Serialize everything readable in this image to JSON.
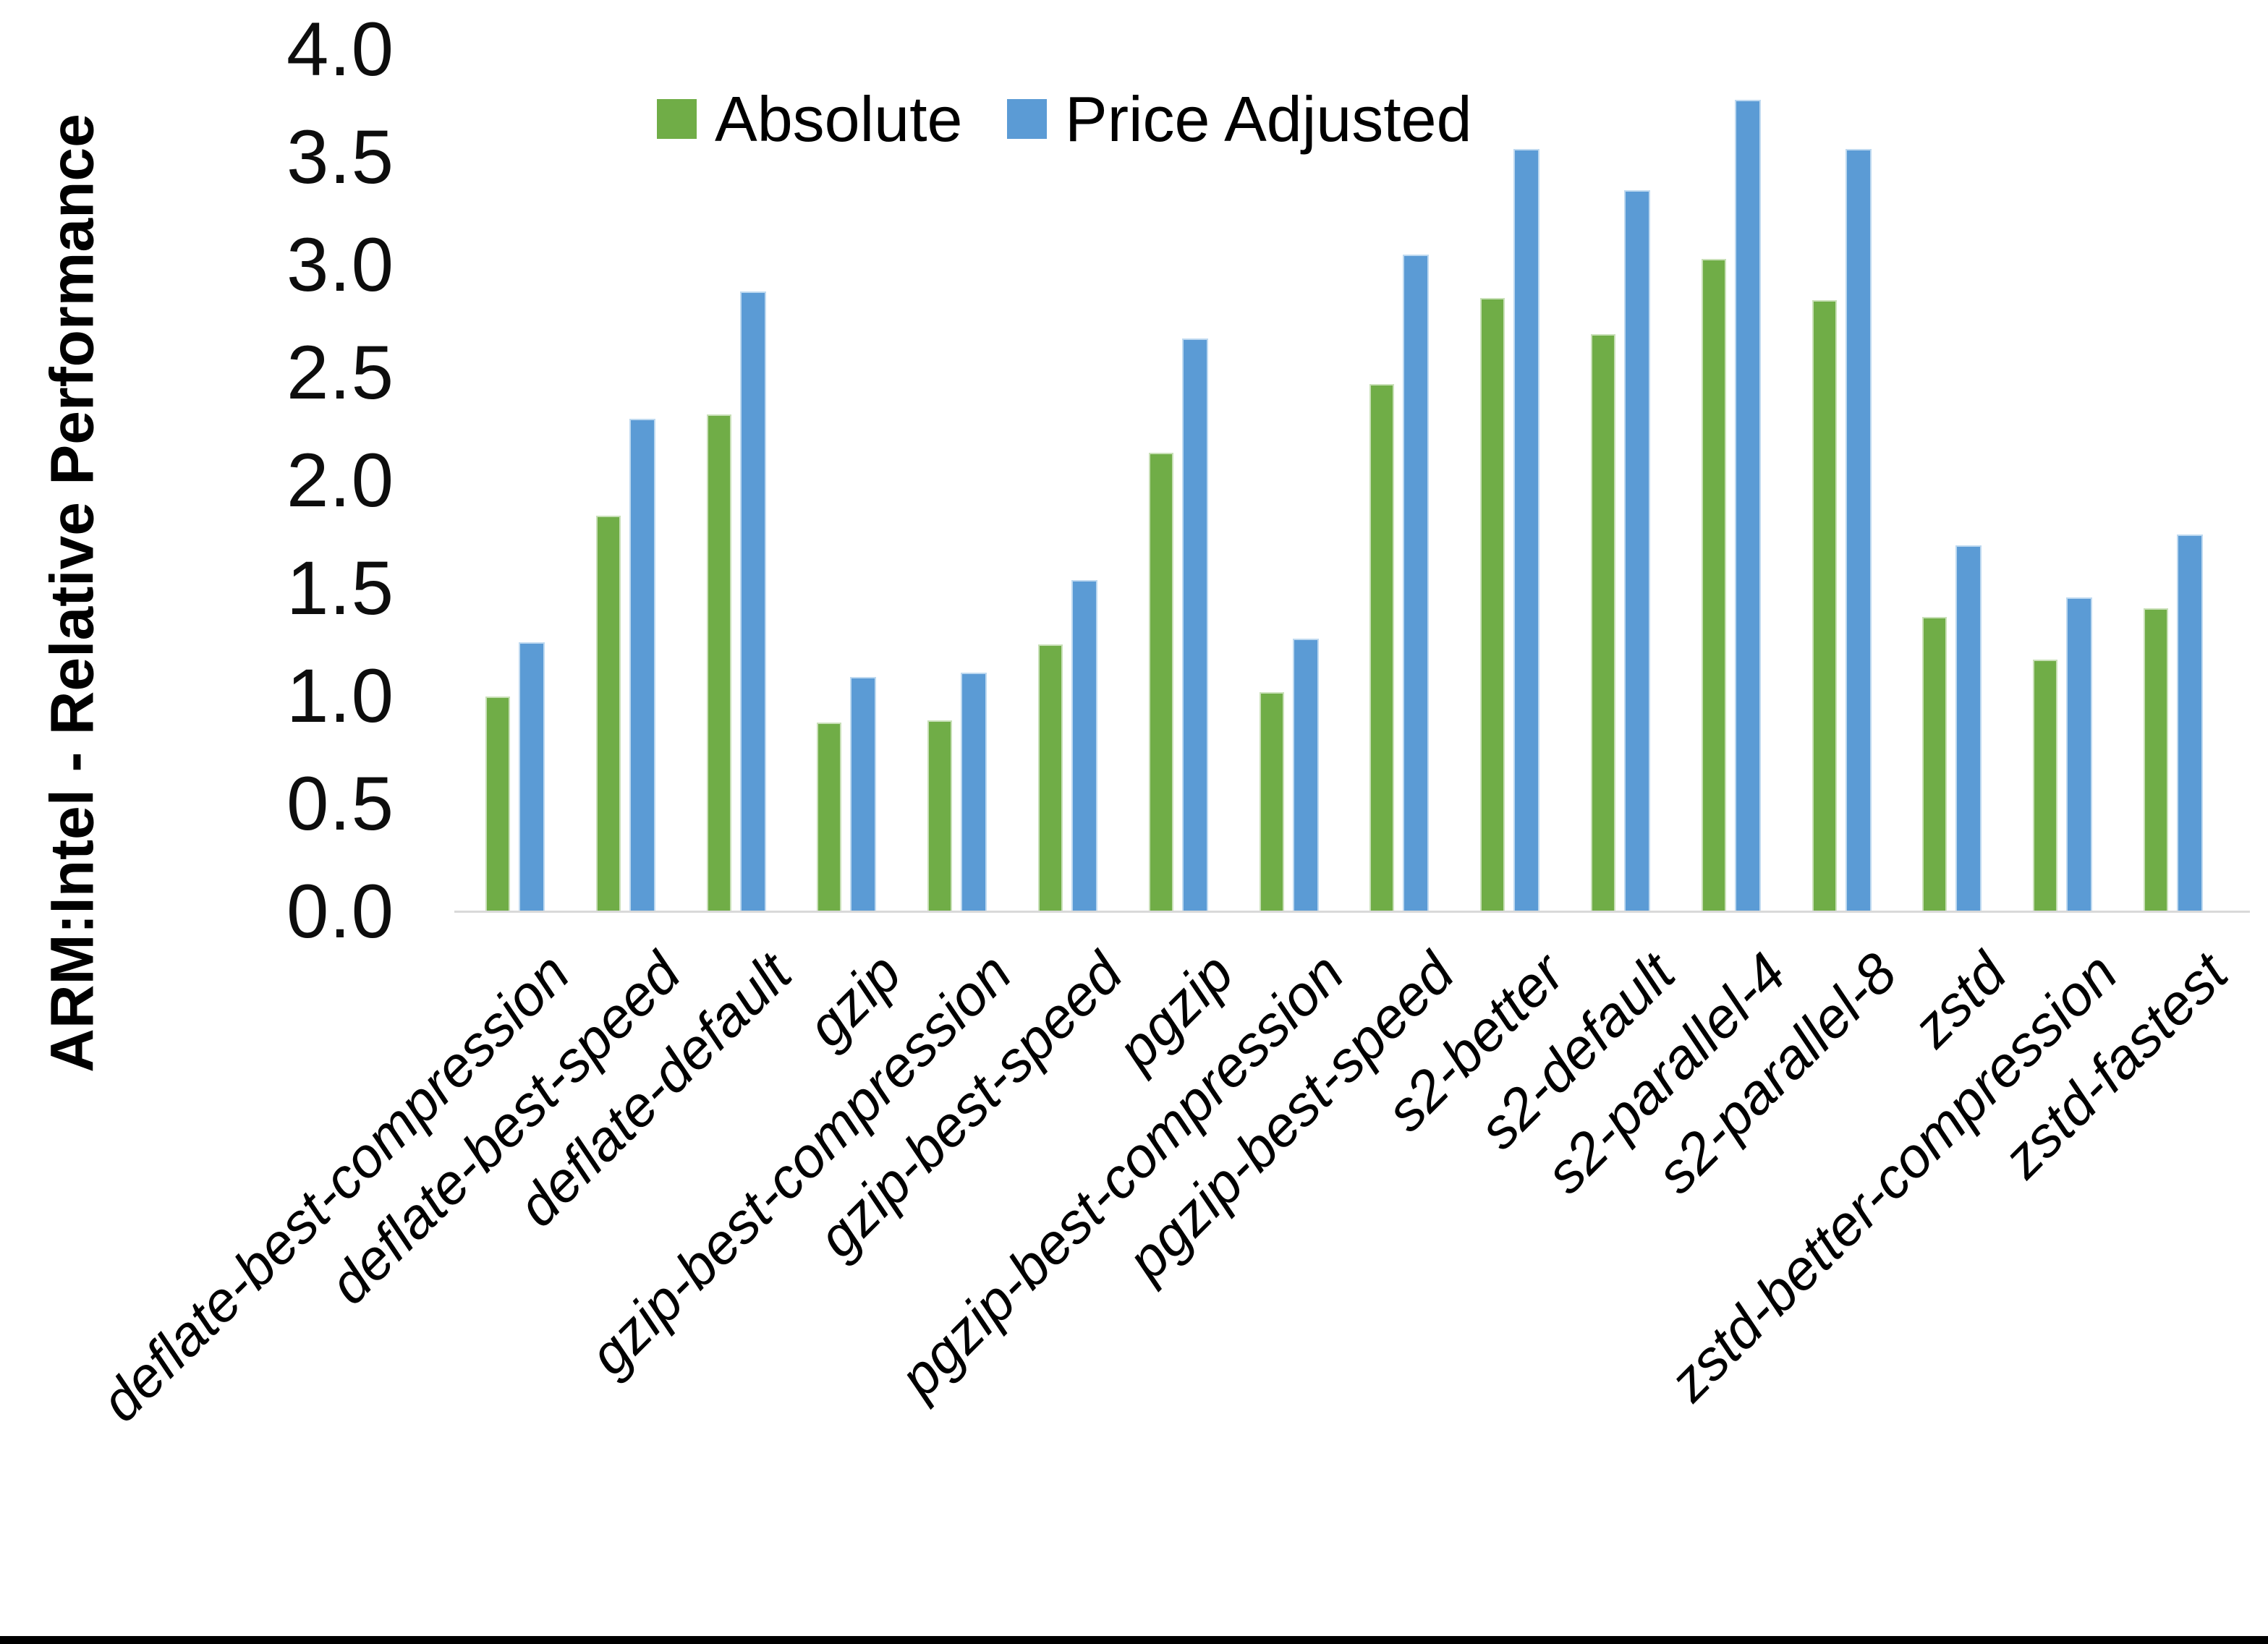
{
  "chart_data": {
    "type": "bar",
    "title": "",
    "ylabel": "ARM:Intel - Relative Performance",
    "xlabel": "",
    "ylim": [
      0.0,
      4.0
    ],
    "ytick_step": 0.5,
    "yticks": [
      "0.0",
      "0.5",
      "1.0",
      "1.5",
      "2.0",
      "2.5",
      "3.0",
      "3.5",
      "4.0"
    ],
    "grid": false,
    "legend_position": "top",
    "categories": [
      "deflate-best-compression",
      "deflate-best-speed",
      "deflate-default",
      "gzip",
      "gzip-best-compression",
      "gzip-best-speed",
      "pgzip",
      "pgzip-best-compression",
      "pgzip-best-speed",
      "s2-better",
      "s2-default",
      "s2-parallel-4",
      "s2-parallel-8",
      "zstd",
      "zstd-better-compression",
      "zstd-fastest"
    ],
    "series": [
      {
        "name": "Absolute",
        "color": "#70AD47",
        "edge_color": "#c9e0b8",
        "values": [
          1.0,
          1.84,
          2.31,
          0.88,
          0.89,
          1.24,
          2.13,
          1.02,
          2.45,
          2.85,
          2.68,
          3.03,
          2.84,
          1.37,
          1.17,
          1.41
        ]
      },
      {
        "name": "Price Adjusted",
        "color": "#5B9BD5",
        "edge_color": "#bed9f0",
        "values": [
          1.25,
          2.29,
          2.88,
          1.09,
          1.11,
          1.54,
          2.66,
          1.27,
          3.05,
          3.54,
          3.35,
          3.77,
          3.54,
          1.7,
          1.46,
          1.75
        ]
      }
    ],
    "axis_line_color": "#d9d9d9",
    "bottom_border_color": "#000000"
  }
}
